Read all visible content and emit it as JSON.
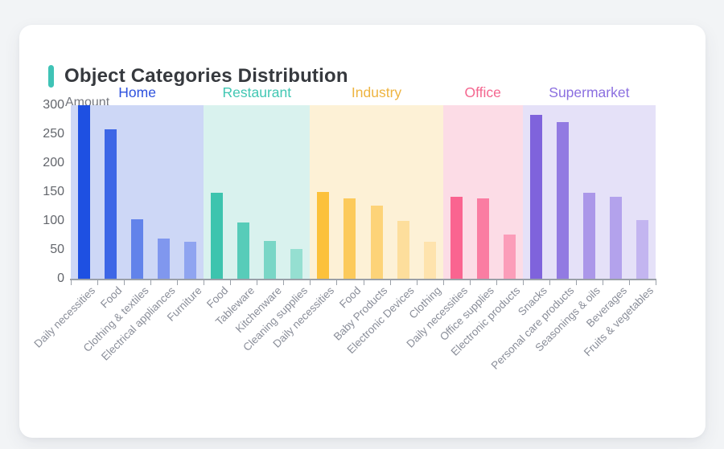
{
  "title": "Object Categories Distribution",
  "theme": {
    "accent_color": "#3fc3b6",
    "card_bg": "#ffffff",
    "page_bg": "#f2f4f6",
    "axis_color": "#9aa0a8",
    "title_color": "#36393e",
    "y_label_color": "#63666c",
    "x_label_color": "#8a8e99"
  },
  "chart_data": {
    "type": "bar",
    "title": "Object Categories Distribution",
    "xlabel": "",
    "ylabel": "Amount",
    "ylim": [
      0,
      300
    ],
    "y_ticks": [
      0,
      50,
      100,
      150,
      200,
      250,
      300
    ],
    "grid": false,
    "legend_position": "none",
    "group_header_position": "top",
    "groups": [
      {
        "name": "Home",
        "label_color": "#2d51de",
        "band_color": "#cdd7f6",
        "items": [
          {
            "label": "Daily necessities",
            "value": 300,
            "color": "#1e50e2"
          },
          {
            "label": "Food",
            "value": 258,
            "color": "#3d66e6"
          },
          {
            "label": "Clothing & textiles",
            "value": 103,
            "color": "#6283ea"
          },
          {
            "label": "Electrical appliances",
            "value": 69,
            "color": "#8097ee"
          },
          {
            "label": "Furniture",
            "value": 64,
            "color": "#8fa4f0"
          }
        ]
      },
      {
        "name": "Restaurant",
        "label_color": "#41c7b3",
        "band_color": "#d9f2ee",
        "items": [
          {
            "label": "Food",
            "value": 149,
            "color": "#3dc4ae"
          },
          {
            "label": "Tableware",
            "value": 97,
            "color": "#57ccb9"
          },
          {
            "label": "Kitchenware",
            "value": 65,
            "color": "#79d6c6"
          },
          {
            "label": "Cleaning supplies",
            "value": 52,
            "color": "#95dfd1"
          }
        ]
      },
      {
        "name": "Industry",
        "label_color": "#eeb440",
        "band_color": "#fdf1d6",
        "items": [
          {
            "label": "Daily necessities",
            "value": 150,
            "color": "#fcc13b"
          },
          {
            "label": "Food",
            "value": 139,
            "color": "#fcca5b"
          },
          {
            "label": "Baby Products",
            "value": 127,
            "color": "#fdd378"
          },
          {
            "label": "Electronic Devices",
            "value": 100,
            "color": "#fdde9c"
          },
          {
            "label": "Clothing",
            "value": 64,
            "color": "#fee3ad"
          }
        ]
      },
      {
        "name": "Office",
        "label_color": "#f4668f",
        "band_color": "#fcdce6",
        "items": [
          {
            "label": "Daily necessities",
            "value": 142,
            "color": "#fa6490"
          },
          {
            "label": "Office supplies",
            "value": 139,
            "color": "#fa7da2"
          },
          {
            "label": "Electronic products",
            "value": 76,
            "color": "#fb9db9"
          }
        ]
      },
      {
        "name": "Supermarket",
        "label_color": "#8b6fe0",
        "band_color": "#e5e1f8",
        "items": [
          {
            "label": "Snacks",
            "value": 284,
            "color": "#7f63dc"
          },
          {
            "label": "Personal care products",
            "value": 271,
            "color": "#927ae2"
          },
          {
            "label": "Seasonings & oils",
            "value": 148,
            "color": "#ab97e9"
          },
          {
            "label": "Beverages",
            "value": 141,
            "color": "#b3a2ec"
          },
          {
            "label": "Fruits & vegetables",
            "value": 102,
            "color": "#c3b5f0"
          }
        ]
      }
    ]
  }
}
